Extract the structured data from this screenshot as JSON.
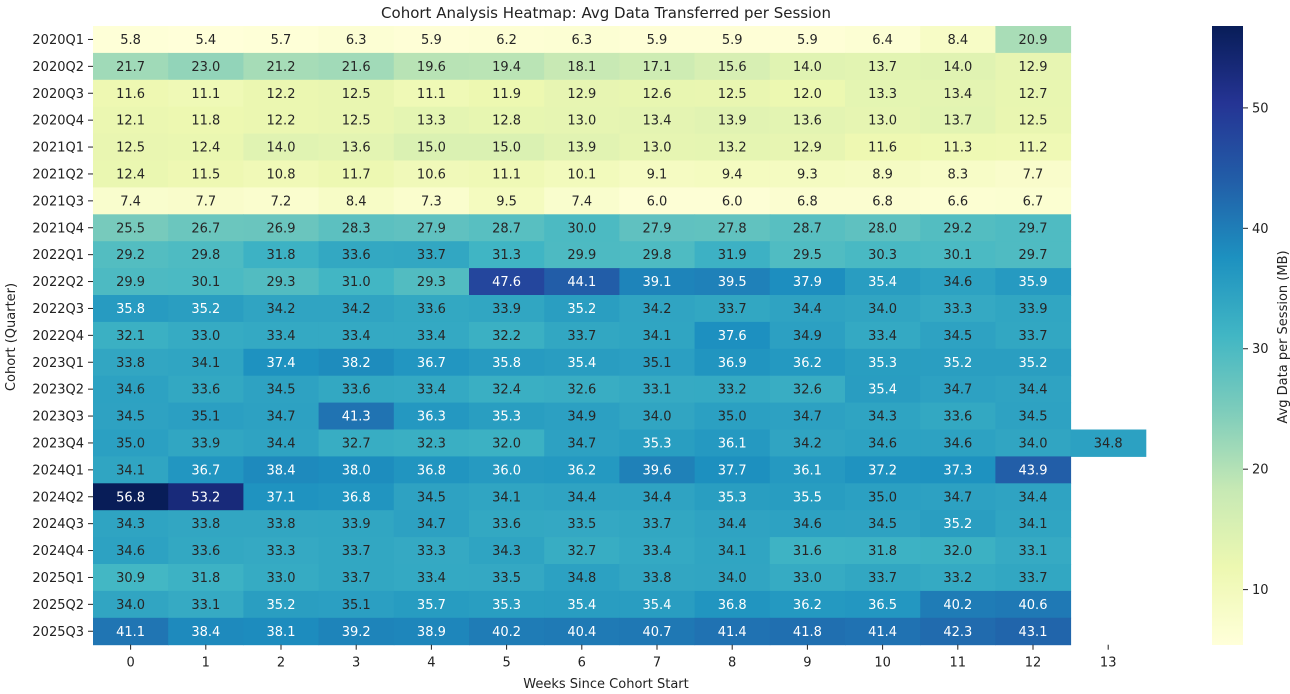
{
  "chart_data": {
    "type": "heatmap",
    "title": "Cohort Analysis Heatmap: Avg Data Transferred per Session",
    "xlabel": "Weeks Since Cohort Start",
    "ylabel": "Cohort (Quarter)",
    "x": [
      "0",
      "1",
      "2",
      "3",
      "4",
      "5",
      "6",
      "7",
      "8",
      "9",
      "10",
      "11",
      "12",
      "13"
    ],
    "y": [
      "2020Q1",
      "2020Q2",
      "2020Q3",
      "2020Q4",
      "2021Q1",
      "2021Q2",
      "2021Q3",
      "2021Q4",
      "2022Q1",
      "2022Q2",
      "2022Q3",
      "2022Q4",
      "2023Q1",
      "2023Q2",
      "2023Q3",
      "2023Q4",
      "2024Q1",
      "2024Q2",
      "2024Q3",
      "2024Q4",
      "2025Q1",
      "2025Q2",
      "2025Q3"
    ],
    "values": [
      [
        5.8,
        5.4,
        5.7,
        6.3,
        5.9,
        6.2,
        6.3,
        5.9,
        5.9,
        5.9,
        6.4,
        8.4,
        20.9,
        null
      ],
      [
        21.7,
        23.0,
        21.2,
        21.6,
        19.6,
        19.4,
        18.1,
        17.1,
        15.6,
        14.0,
        13.7,
        14.0,
        12.9,
        null
      ],
      [
        11.6,
        11.1,
        12.2,
        12.5,
        11.1,
        11.9,
        12.9,
        12.6,
        12.5,
        12.0,
        13.3,
        13.4,
        12.7,
        null
      ],
      [
        12.1,
        11.8,
        12.2,
        12.5,
        13.3,
        12.8,
        13.0,
        13.4,
        13.9,
        13.6,
        13.0,
        13.7,
        12.5,
        null
      ],
      [
        12.5,
        12.4,
        14.0,
        13.6,
        15.0,
        15.0,
        13.9,
        13.0,
        13.2,
        12.9,
        11.6,
        11.3,
        11.2,
        null
      ],
      [
        12.4,
        11.5,
        10.8,
        11.7,
        10.6,
        11.1,
        10.1,
        9.1,
        9.4,
        9.3,
        8.9,
        8.3,
        7.7,
        null
      ],
      [
        7.4,
        7.7,
        7.2,
        8.4,
        7.3,
        9.5,
        7.4,
        6.0,
        6.0,
        6.8,
        6.8,
        6.6,
        6.7,
        null
      ],
      [
        25.5,
        26.7,
        26.9,
        28.3,
        27.9,
        28.7,
        30.0,
        27.9,
        27.8,
        28.7,
        28.0,
        29.2,
        29.7,
        null
      ],
      [
        29.2,
        29.8,
        31.8,
        33.6,
        33.7,
        31.3,
        29.9,
        29.8,
        31.9,
        29.5,
        30.3,
        30.1,
        29.7,
        null
      ],
      [
        29.9,
        30.1,
        29.3,
        31.0,
        29.3,
        47.6,
        44.1,
        39.1,
        39.5,
        37.9,
        35.4,
        34.6,
        35.9,
        null
      ],
      [
        35.8,
        35.2,
        34.2,
        34.2,
        33.6,
        33.9,
        35.2,
        34.2,
        33.7,
        34.4,
        34.0,
        33.3,
        33.9,
        null
      ],
      [
        32.1,
        33.0,
        33.4,
        33.4,
        33.4,
        32.2,
        33.7,
        34.1,
        37.6,
        34.9,
        33.4,
        34.5,
        33.7,
        null
      ],
      [
        33.8,
        34.1,
        37.4,
        38.2,
        36.7,
        35.8,
        35.4,
        35.1,
        36.9,
        36.2,
        35.3,
        35.2,
        35.2,
        null
      ],
      [
        34.6,
        33.6,
        34.5,
        33.6,
        33.4,
        32.4,
        32.6,
        33.1,
        33.2,
        32.6,
        35.4,
        34.7,
        34.4,
        null
      ],
      [
        34.5,
        35.1,
        34.7,
        41.3,
        36.3,
        35.3,
        34.9,
        34.0,
        35.0,
        34.7,
        34.3,
        33.6,
        34.5,
        null
      ],
      [
        35.0,
        33.9,
        34.4,
        32.7,
        32.3,
        32.0,
        34.7,
        35.3,
        36.1,
        34.2,
        34.6,
        34.6,
        34.0,
        34.8
      ],
      [
        34.1,
        36.7,
        38.4,
        38.0,
        36.8,
        36.0,
        36.2,
        39.6,
        37.7,
        36.1,
        37.2,
        37.3,
        43.9,
        null
      ],
      [
        56.8,
        53.2,
        37.1,
        36.8,
        34.5,
        34.1,
        34.4,
        34.4,
        35.3,
        35.5,
        35.0,
        34.7,
        34.4,
        null
      ],
      [
        34.3,
        33.8,
        33.8,
        33.9,
        34.7,
        33.6,
        33.5,
        33.7,
        34.4,
        34.6,
        34.5,
        35.2,
        34.1,
        null
      ],
      [
        34.6,
        33.6,
        33.3,
        33.7,
        33.3,
        34.3,
        32.7,
        33.4,
        34.1,
        31.6,
        31.8,
        32.0,
        33.1,
        null
      ],
      [
        30.9,
        31.8,
        33.0,
        33.7,
        33.4,
        33.5,
        34.8,
        33.8,
        34.0,
        33.0,
        33.7,
        33.2,
        33.7,
        null
      ],
      [
        34.0,
        33.1,
        35.2,
        35.1,
        35.7,
        35.3,
        35.4,
        35.4,
        36.8,
        36.2,
        36.5,
        40.2,
        40.6,
        null
      ],
      [
        41.1,
        38.4,
        38.1,
        39.2,
        38.9,
        40.2,
        40.4,
        40.7,
        41.4,
        41.8,
        41.4,
        42.3,
        43.1,
        null
      ]
    ],
    "vmin": 5.4,
    "vmax": 56.8,
    "colormap": "YlGnBu",
    "colormap_stops": [
      "#ffffd9",
      "#edf8b1",
      "#c7e9b4",
      "#7fcdbb",
      "#41b6c4",
      "#1d91c0",
      "#225ea8",
      "#253494",
      "#081d58"
    ],
    "colorbar": {
      "label": "Avg Data per Session (MB)",
      "ticks": [
        10,
        20,
        30,
        40,
        50
      ]
    },
    "grid": false,
    "annotations": true
  }
}
